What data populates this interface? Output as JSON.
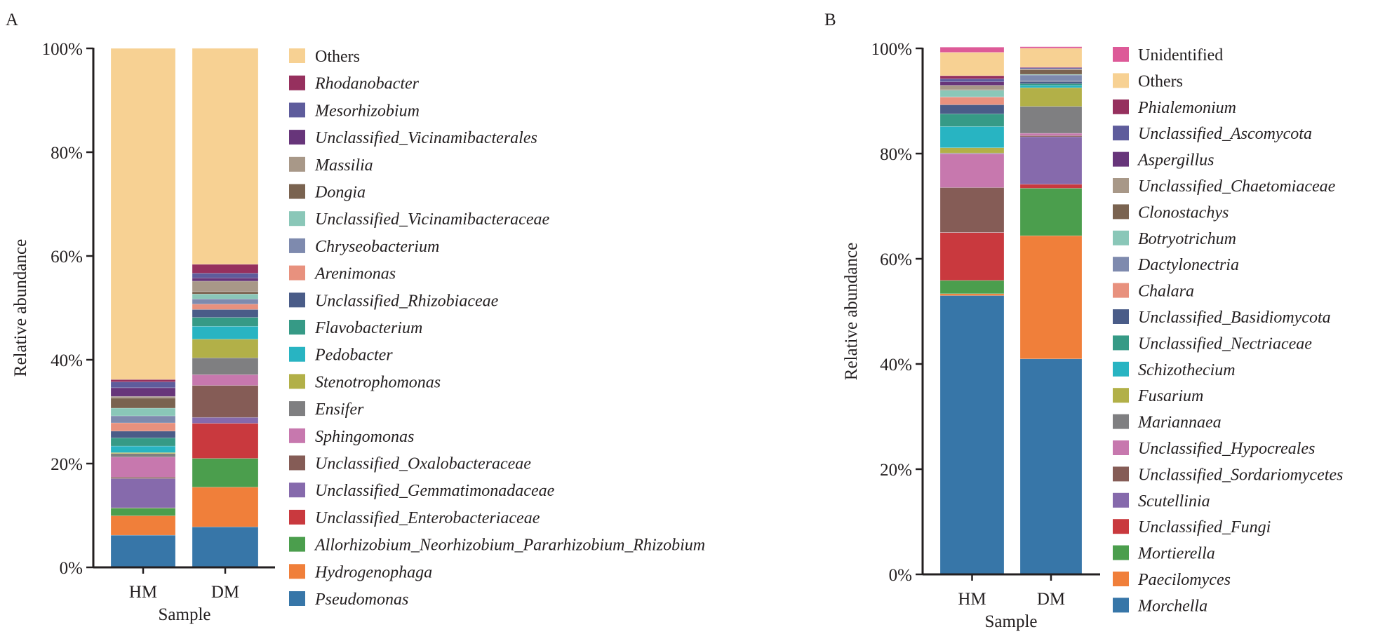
{
  "chart_data": [
    {
      "panel": "A",
      "type": "bar",
      "stacked": true,
      "title": "",
      "xlabel": "Sample",
      "ylabel": "Relative abundance",
      "ylim": [
        0,
        100
      ],
      "yticks": [
        "0%",
        "20%",
        "40%",
        "60%",
        "80%",
        "100%"
      ],
      "categories": [
        "HM",
        "DM"
      ],
      "legend_position": "right",
      "series": [
        {
          "name": "Pseudomonas",
          "color": "#3776A8",
          "values": [
            6.2,
            7.8
          ]
        },
        {
          "name": "Hydrogenophaga",
          "color": "#F07F3A",
          "values": [
            3.74,
            7.66
          ]
        },
        {
          "name": "Allorhizobium_Neorhizobium_Pararhizobium_Rhizobium",
          "color": "#4B9E4D",
          "values": [
            1.49,
            5.54
          ]
        },
        {
          "name": "Unclassified_Enterobacteriaceae",
          "color": "#C9393E",
          "values": [
            0.05,
            6.76
          ]
        },
        {
          "name": "Unclassified_Gemmatimonadaceae",
          "color": "#866AAC",
          "values": [
            5.63,
            1.13
          ]
        },
        {
          "name": "Unclassified_Oxalobacteraceae",
          "color": "#855C56",
          "values": [
            0.27,
            6.17
          ]
        },
        {
          "name": "Sphingomonas",
          "color": "#C778AE",
          "values": [
            3.87,
            2.07
          ]
        },
        {
          "name": "Ensifer",
          "color": "#7F7F81",
          "values": [
            0.68,
            3.24
          ]
        },
        {
          "name": "Stenotrophomonas",
          "color": "#B2B048",
          "values": [
            0.18,
            3.6
          ]
        },
        {
          "name": "Pedobacter",
          "color": "#28B4C2",
          "values": [
            1.26,
            2.48
          ]
        },
        {
          "name": "Flavobacterium",
          "color": "#369A86",
          "values": [
            1.58,
            1.71
          ]
        },
        {
          "name": "Unclassified_Rhizobiaceae",
          "color": "#4A5C88",
          "values": [
            1.31,
            1.53
          ]
        },
        {
          "name": "Arenimonas",
          "color": "#E8917E",
          "values": [
            1.58,
            1.04
          ]
        },
        {
          "name": "Chryseobacterium",
          "color": "#7E8AAE",
          "values": [
            1.35,
            0.99
          ]
        },
        {
          "name": "Unclassified_Vicinamibacteraceae",
          "color": "#8AC7B8",
          "values": [
            1.49,
            0.95
          ]
        },
        {
          "name": "Dongia",
          "color": "#7A6350",
          "values": [
            1.94,
            0.45
          ]
        },
        {
          "name": "Massilia",
          "color": "#A89888",
          "values": [
            0.32,
            2.03
          ]
        },
        {
          "name": "Unclassified_Vicinamibacterales",
          "color": "#67357A",
          "values": [
            1.67,
            0.63
          ]
        },
        {
          "name": "Mesorhizobium",
          "color": "#5E5C9C",
          "values": [
            1.13,
            0.9
          ]
        },
        {
          "name": "Rhodanobacter",
          "color": "#96305E",
          "values": [
            0.45,
            1.71
          ]
        },
        {
          "name": "Others",
          "color": "#F7D193",
          "values": [
            63.81,
            41.62
          ]
        }
      ]
    },
    {
      "panel": "B",
      "type": "bar",
      "stacked": true,
      "title": "",
      "xlabel": "Sample",
      "ylabel": "Relative abundance",
      "ylim": [
        0,
        100
      ],
      "yticks": [
        "0%",
        "20%",
        "40%",
        "60%",
        "80%",
        "100%"
      ],
      "categories": [
        "HM",
        "DM"
      ],
      "legend_position": "right",
      "series": [
        {
          "name": "Morchella",
          "color": "#3776A8",
          "values": [
            53.0,
            40.97
          ]
        },
        {
          "name": "Paecilomyces",
          "color": "#F07F3A",
          "values": [
            0.36,
            23.42
          ]
        },
        {
          "name": "Mortierella",
          "color": "#4B9E4D",
          "values": [
            2.53,
            9.02
          ]
        },
        {
          "name": "Unclassified_Fungi",
          "color": "#C9393E",
          "values": [
            9.1,
            0.76
          ]
        },
        {
          "name": "Scutellinia",
          "color": "#866AAC",
          "values": [
            0.02,
            9.03
          ]
        },
        {
          "name": "Unclassified_Sordariomycetes",
          "color": "#855C56",
          "values": [
            8.53,
            0.22
          ]
        },
        {
          "name": "Unclassified_Hypocreales",
          "color": "#C778AE",
          "values": [
            6.44,
            0.44
          ]
        },
        {
          "name": "Mariannaea",
          "color": "#7F7F81",
          "values": [
            0.13,
            5.11
          ]
        },
        {
          "name": "Fusarium",
          "color": "#B2B048",
          "values": [
            1.0,
            3.56
          ]
        },
        {
          "name": "Schizothecium",
          "color": "#28B4C2",
          "values": [
            4.04,
            0.44
          ]
        },
        {
          "name": "Unclassified_Nectriaceae",
          "color": "#369A86",
          "values": [
            2.4,
            0.31
          ]
        },
        {
          "name": "Unclassified_Basidiomycota",
          "color": "#4A5C88",
          "values": [
            1.73,
            0.44
          ]
        },
        {
          "name": "Chalara",
          "color": "#E8917E",
          "values": [
            1.47,
            0.05
          ]
        },
        {
          "name": "Dactylonectria",
          "color": "#7E8AAE",
          "values": [
            0.05,
            1.16
          ]
        },
        {
          "name": "Botryotrichum",
          "color": "#8AC7B8",
          "values": [
            1.24,
            0.13
          ]
        },
        {
          "name": "Clonostachys",
          "color": "#7A6350",
          "values": [
            0.1,
            0.89
          ]
        },
        {
          "name": "Unclassified_Chaetomiaceae",
          "color": "#A89888",
          "values": [
            0.84,
            0.13
          ]
        },
        {
          "name": "Aspergillus",
          "color": "#67357A",
          "values": [
            0.67,
            0.05
          ]
        },
        {
          "name": "Unclassified_Ascomycota",
          "color": "#5E5C9C",
          "values": [
            0.58,
            0.18
          ]
        },
        {
          "name": "Phialemonium",
          "color": "#96305E",
          "values": [
            0.58,
            0.13
          ]
        },
        {
          "name": "Others",
          "color": "#F7D193",
          "values": [
            4.44,
            3.6
          ]
        },
        {
          "name": "Unidentified",
          "color": "#DD5A98",
          "values": [
            0.98,
            0.27
          ]
        }
      ]
    }
  ],
  "non_italic_names": [
    "Others",
    "Unidentified"
  ]
}
